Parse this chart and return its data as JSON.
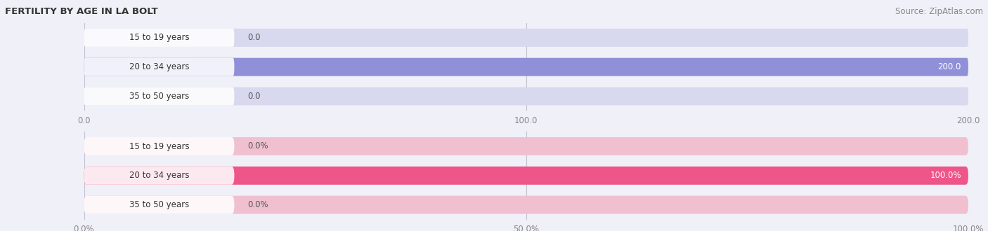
{
  "title": "FERTILITY BY AGE IN LA BOLT",
  "source": "Source: ZipAtlas.com",
  "top_chart": {
    "categories": [
      "15 to 19 years",
      "20 to 34 years",
      "35 to 50 years"
    ],
    "values": [
      0.0,
      200.0,
      0.0
    ],
    "xlim": [
      0,
      200
    ],
    "xticks": [
      0.0,
      100.0,
      200.0
    ],
    "xtick_labels": [
      "0.0",
      "100.0",
      "200.0"
    ],
    "bar_color": "#9090d8",
    "bar_bg_color": "#d8d8ee",
    "value_color_inside": "#ffffff",
    "value_color_outside": "#555555"
  },
  "bottom_chart": {
    "categories": [
      "15 to 19 years",
      "20 to 34 years",
      "35 to 50 years"
    ],
    "values": [
      0.0,
      100.0,
      0.0
    ],
    "xlim": [
      0,
      100
    ],
    "xticks": [
      0.0,
      50.0,
      100.0
    ],
    "xtick_labels": [
      "0.0%",
      "50.0%",
      "100.0%"
    ],
    "bar_color": "#ee5588",
    "bar_bg_color": "#f0c0d0",
    "value_color_inside": "#ffffff",
    "value_color_outside": "#555555"
  },
  "background_color": "#f0f0f8",
  "bar_height": 0.62,
  "label_fontsize": 8.5,
  "tick_fontsize": 8.5,
  "category_fontsize": 8.5,
  "title_fontsize": 9.5,
  "source_fontsize": 8.5
}
